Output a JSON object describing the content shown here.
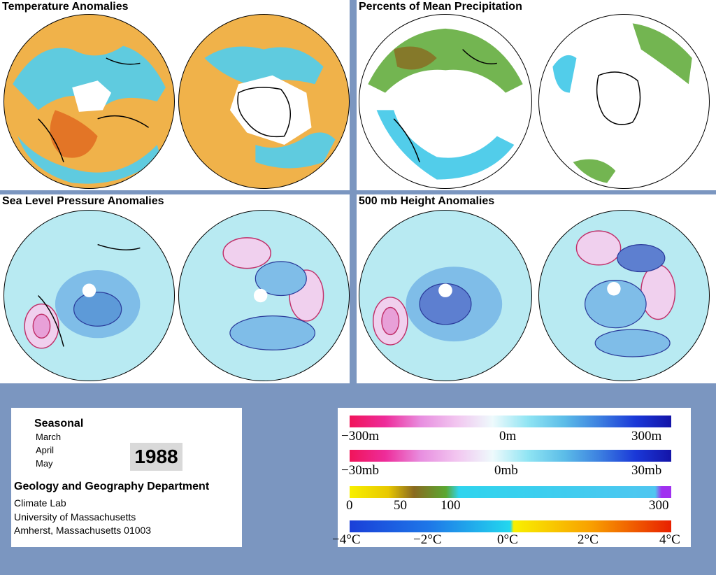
{
  "panels": {
    "temperature": {
      "title": "Temperature Anomalies"
    },
    "precipitation": {
      "title": "Percents of Mean Precipitation"
    },
    "slp": {
      "title": "Sea Level Pressure Anomalies"
    },
    "height500": {
      "title": "500 mb Height Anomalies"
    }
  },
  "info": {
    "season": "Seasonal",
    "months": [
      "March",
      "April",
      "May"
    ],
    "year": "1988",
    "department": "Geology and Geography Department",
    "lab": "Climate Lab",
    "university": "University of Massachusetts",
    "address": "Amherst, Massachusetts 01003"
  },
  "legend": {
    "height_scale": {
      "labels": [
        "−300m",
        "0m",
        "300m"
      ]
    },
    "pressure_scale": {
      "labels": [
        "−30mb",
        "0mb",
        "30mb"
      ]
    },
    "precip_scale": {
      "labels": [
        "0",
        "50",
        "100",
        "300"
      ]
    },
    "temp_scale": {
      "labels": [
        "−4°C",
        "−2°C",
        "0°C",
        "2°C",
        "4°C"
      ]
    }
  },
  "colors": {
    "background": "#7b96c0",
    "warm_anomaly": "#f5b03a",
    "cool_anomaly": "#55d2ee",
    "contour_fill": "#a8e6f0",
    "negative_contour": "#2a3a9a",
    "positive_contour": "#c0306a"
  }
}
